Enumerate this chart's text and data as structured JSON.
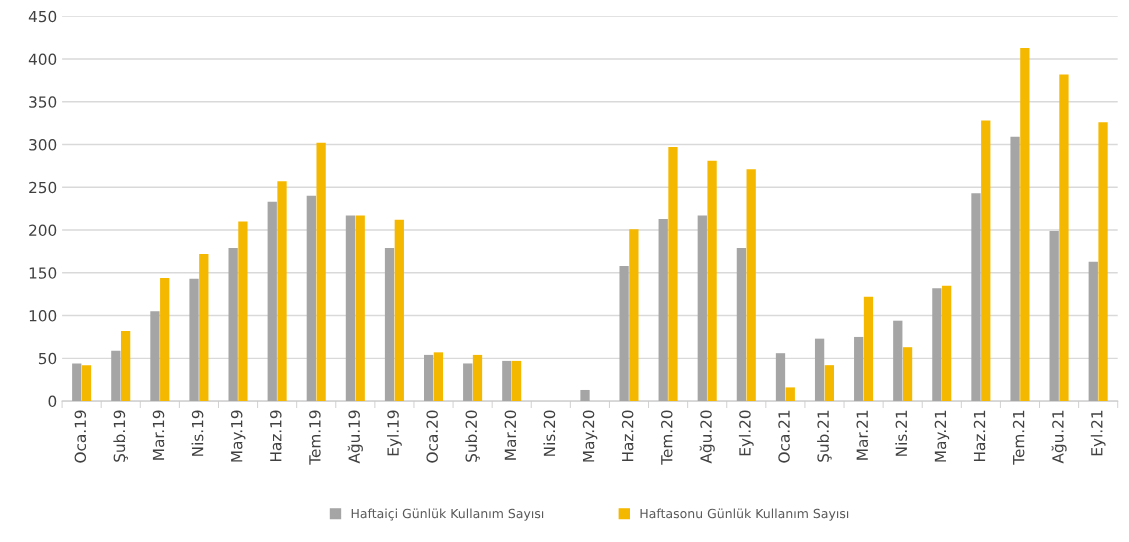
{
  "chart_data": {
    "type": "bar",
    "categories": [
      "Oca.19",
      "Şub.19",
      "Mar.19",
      "Nis.19",
      "May.19",
      "Haz.19",
      "Tem.19",
      "Ağu.19",
      "Eyl.19",
      "Oca.20",
      "Şub.20",
      "Mar.20",
      "Nis.20",
      "May.20",
      "Haz.20",
      "Tem.20",
      "Ağu.20",
      "Eyl.20",
      "Oca.21",
      "Şub.21",
      "Mar.21",
      "Nis.21",
      "May.21",
      "Haz.21",
      "Tem.21",
      "Ağu.21",
      "Eyl.21"
    ],
    "series": [
      {
        "name": "Haftaiçi Günlük Kullanım Sayısı",
        "color": "#a5a5a5",
        "values": [
          44,
          59,
          105,
          143,
          179,
          233,
          240,
          217,
          179,
          54,
          44,
          47,
          0,
          13,
          158,
          213,
          217,
          179,
          56,
          73,
          75,
          94,
          132,
          243,
          309,
          199,
          163
        ]
      },
      {
        "name": "Haftasonu Günlük Kullanım Sayısı",
        "color": "#f5b800",
        "values": [
          42,
          82,
          144,
          172,
          210,
          257,
          302,
          217,
          212,
          57,
          54,
          47,
          0,
          0,
          201,
          297,
          281,
          271,
          16,
          42,
          122,
          63,
          135,
          328,
          413,
          382,
          326
        ]
      }
    ],
    "ylim": [
      0,
      450
    ],
    "yticks": [
      0,
      50,
      100,
      150,
      200,
      250,
      300,
      350,
      400,
      450
    ],
    "grid": "y",
    "legend": "bottom"
  }
}
